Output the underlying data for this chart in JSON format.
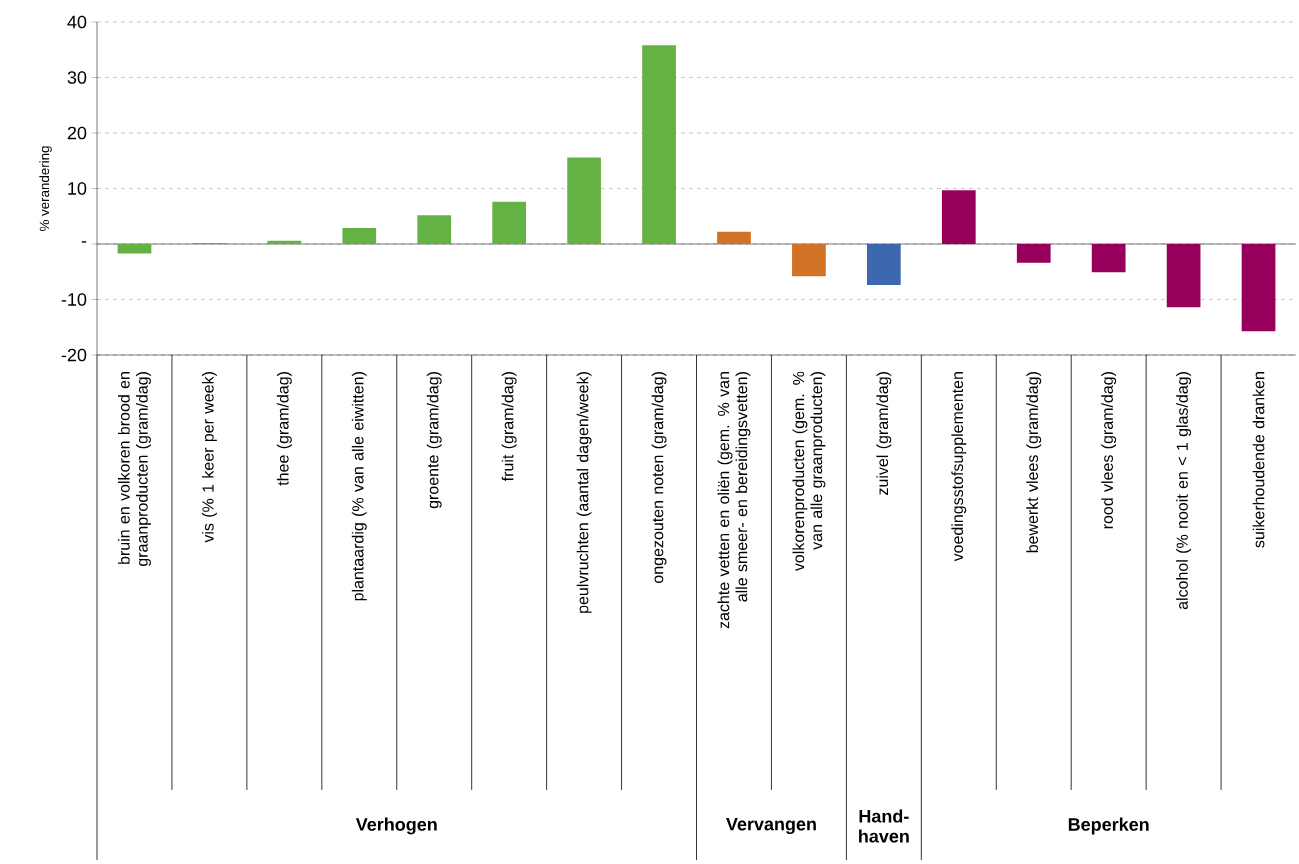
{
  "chart_data": {
    "type": "bar",
    "ylabel": "% verandering",
    "categories": [
      "bruin en volkoren brood en graanproducten (gram/dag)",
      "vis (% 1 keer per week)",
      "thee (gram/dag)",
      "plantaardig (% van alle eiwitten)",
      "groente (gram/dag)",
      "fruit (gram/dag)",
      "peulvruchten (aantal dagen/week)",
      "ongezouten noten (gram/dag)",
      "zachte vetten en oliën (gem. % van alle smeer- en bereidingsvetten)",
      "volkorenproducten (gem. % van alle graanproducten)",
      "zuivel (gram/dag)",
      "voedingsstofsupplementen",
      "bewerkt vlees (gram/dag)",
      "rood vlees (gram/dag)",
      "alcohol (% nooit en < 1 glas/dag)",
      "suikerhoudende dranken"
    ],
    "values": [
      -1.7,
      0.2,
      0.6,
      2.9,
      5.2,
      7.6,
      15.6,
      35.8,
      2.2,
      -5.8,
      -7.4,
      9.7,
      -3.4,
      -5.1,
      -11.4,
      -15.7
    ],
    "colors": [
      "#65b244",
      "#65b244",
      "#65b244",
      "#65b244",
      "#65b244",
      "#65b244",
      "#65b244",
      "#65b244",
      "#d07326",
      "#d07326",
      "#3d67ae",
      "#96005a",
      "#96005a",
      "#96005a",
      "#96005a",
      "#96005a"
    ],
    "ylim": [
      -20,
      40
    ],
    "yticks": [
      -20,
      -10,
      {
        "value": 0,
        "label": "-"
      },
      10,
      20,
      30,
      40
    ],
    "grid": "y",
    "annotations": [
      "Verhogen",
      "Vervangen",
      "Hand-haven",
      "Beperken"
    ]
  }
}
